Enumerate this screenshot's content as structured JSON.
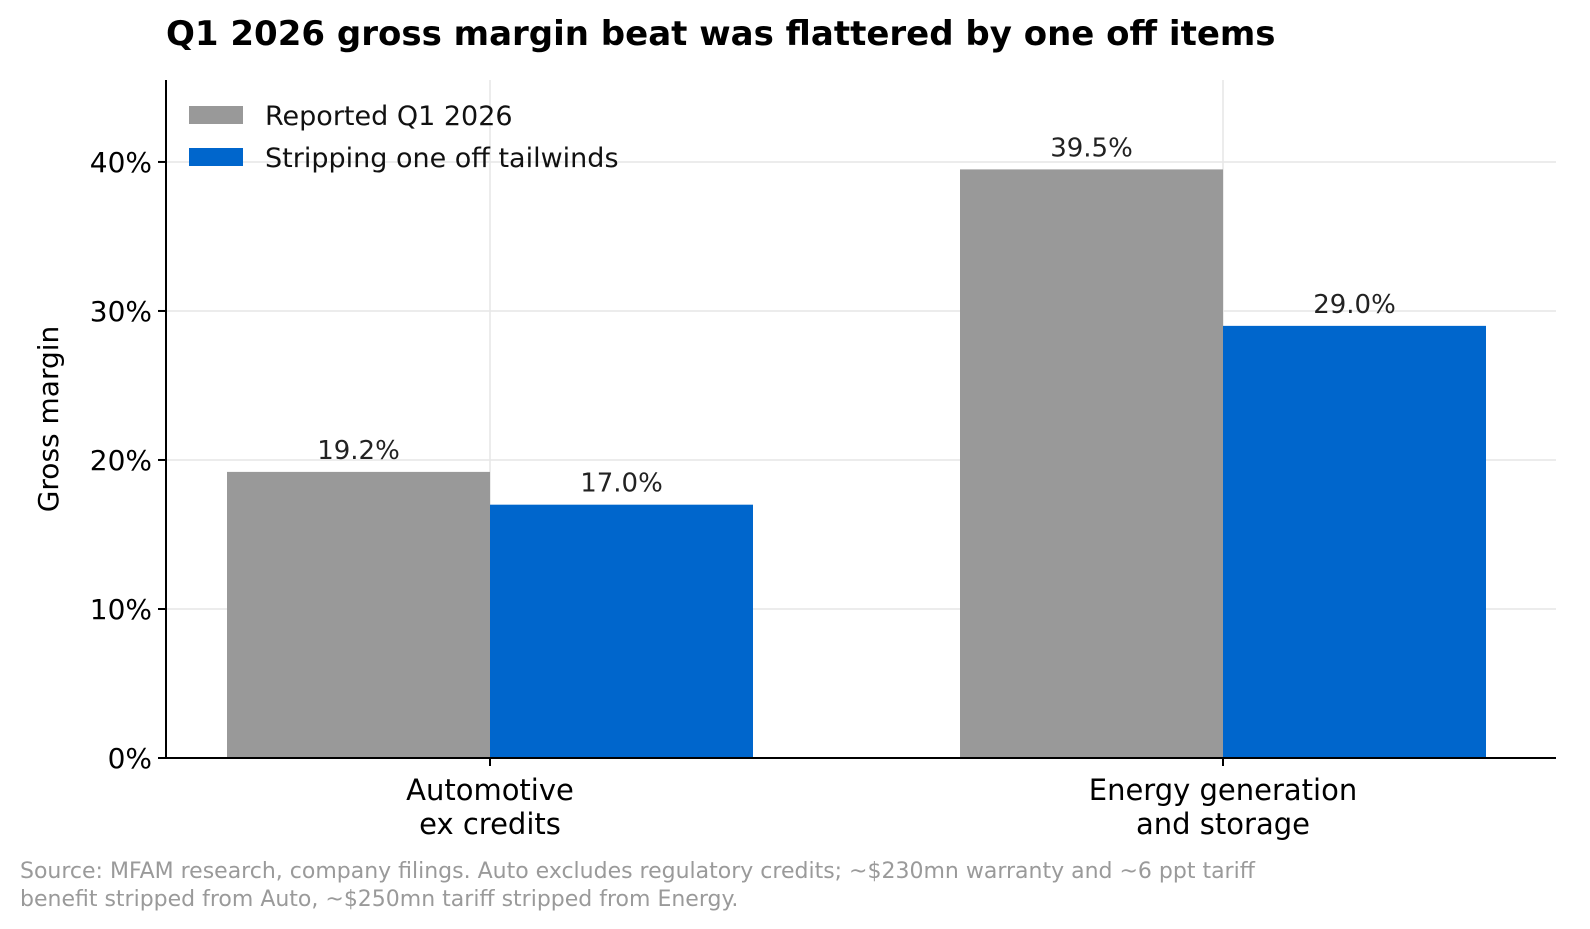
{
  "chart_data": {
    "type": "bar",
    "title": "Q1 2026 gross margin beat was flattered by one off items",
    "xlabel": "",
    "ylabel": "Gross margin",
    "ylim": [
      0,
      45.5
    ],
    "yticks": [
      0,
      10,
      20,
      30,
      40
    ],
    "ytick_labels": [
      "0%",
      "10%",
      "20%",
      "30%",
      "40%"
    ],
    "categories": [
      [
        "Automotive",
        "ex credits"
      ],
      [
        "Energy generation",
        "and storage"
      ]
    ],
    "series": [
      {
        "name": "Reported Q1 2026",
        "values": [
          19.2,
          39.5
        ],
        "labels": [
          "19.2%",
          "39.5%"
        ],
        "color": "#999999"
      },
      {
        "name": "Stripping one off tailwinds",
        "values": [
          17.0,
          29.0
        ],
        "labels": [
          "17.0%",
          "29.0%"
        ],
        "color": "#0066cc"
      }
    ],
    "grid": true,
    "legend_position": "top-left"
  },
  "source_note": {
    "line1": "Source: MFAM research, company filings. Auto excludes regulatory credits; ~$230mn warranty and ~6 ppt tariff",
    "line2": "benefit stripped from Auto, ~$250mn tariff stripped from Energy."
  }
}
